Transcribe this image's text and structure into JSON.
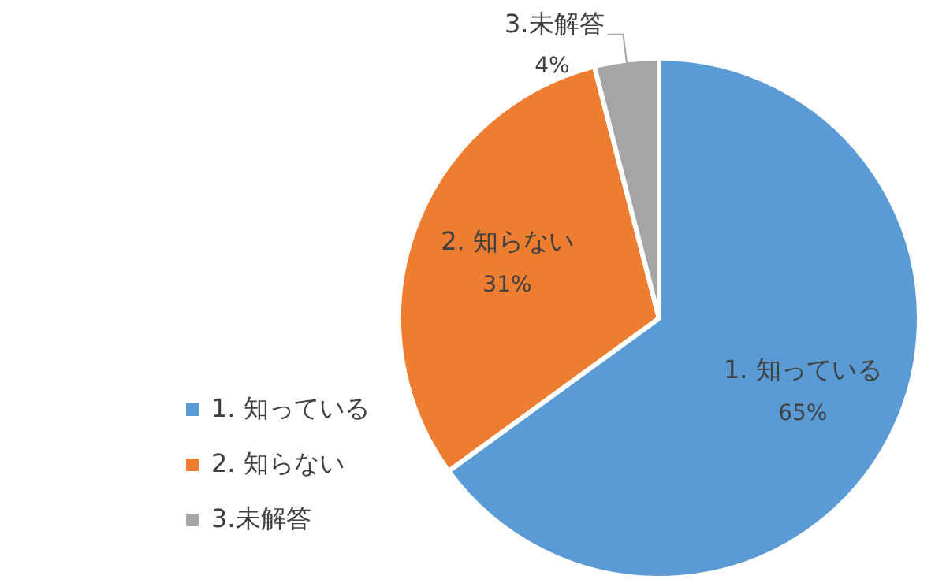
{
  "chart_data": {
    "type": "pie",
    "categories": [
      "1. 知っている",
      "2. 知らない",
      "3.未解答"
    ],
    "values": [
      65,
      31,
      4
    ],
    "colors": [
      "#5b9bd5",
      "#ed7d31",
      "#a5a5a5"
    ],
    "value_labels": [
      "65%",
      "31%",
      "4%"
    ],
    "legend": "left"
  }
}
